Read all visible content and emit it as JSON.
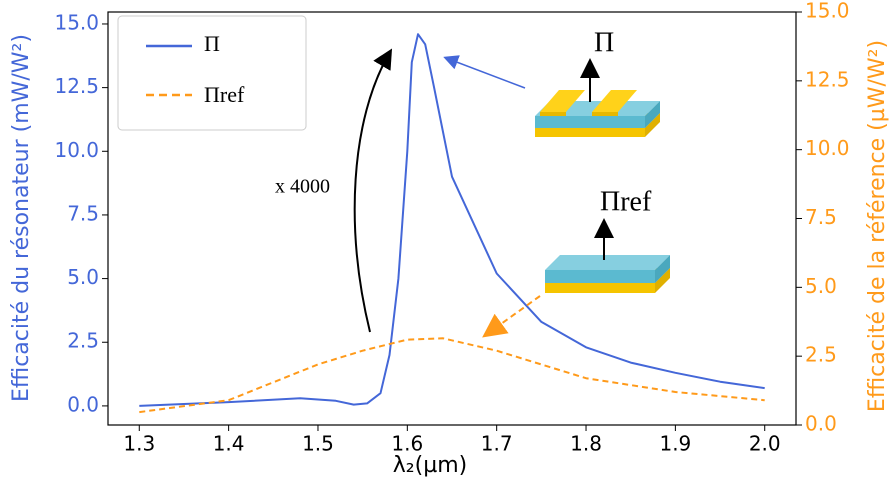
{
  "chart_data": {
    "type": "line",
    "xlabel": "λ₂(µm)",
    "ylabel": "Efficacité du résonateur (mW/W²)",
    "y2label": "Efficacité de la référence (µW/W²)",
    "annotation": "x 4000",
    "inset_labels": [
      "Π",
      "Πref"
    ],
    "xlim": [
      1.265,
      2.035
    ],
    "xticks": [
      1.3,
      1.4,
      1.5,
      1.6,
      1.7,
      1.8,
      1.9,
      {
        "value": 2,
        "label": "2.0"
      }
    ],
    "ylim": [
      -0.75,
      15.47
    ],
    "yticks": [
      {
        "value": 0,
        "label": "0.0"
      },
      2.5,
      {
        "value": 5,
        "label": "5.0"
      },
      7.5,
      {
        "value": 10,
        "label": "10.0"
      },
      12.5,
      {
        "value": 15,
        "label": "15.0"
      }
    ],
    "y2lim": [
      0,
      15
    ],
    "y2ticks": [
      {
        "value": 0,
        "label": "0.0"
      },
      2.5,
      {
        "value": 5,
        "label": "5.0"
      },
      7.5,
      {
        "value": 10,
        "label": "10.0"
      },
      12.5,
      {
        "value": 15,
        "label": "15.0"
      }
    ],
    "legend": "upper left",
    "series": [
      {
        "name": "Π",
        "color": "#4467d8",
        "dash": false,
        "x": [
          1.3,
          1.4,
          1.48,
          1.52,
          1.54,
          1.555,
          1.57,
          1.58,
          1.59,
          1.6,
          1.605,
          1.612,
          1.62,
          1.63,
          1.65,
          1.7,
          1.75,
          1.8,
          1.85,
          1.9,
          1.95,
          2.0
        ],
        "values": [
          0.0,
          0.15,
          0.3,
          0.2,
          0.05,
          0.1,
          0.5,
          2.0,
          5.0,
          10.0,
          13.5,
          14.6,
          14.2,
          12.5,
          9.0,
          5.2,
          3.3,
          2.3,
          1.7,
          1.3,
          0.95,
          0.7
        ]
      },
      {
        "name": "Πref",
        "color": "#ff9a1a",
        "dash": true,
        "axis": "y2",
        "x": [
          1.3,
          1.4,
          1.5,
          1.55,
          1.6,
          1.64,
          1.7,
          1.8,
          1.9,
          2.0
        ],
        "values": [
          0.47,
          0.9,
          2.2,
          2.7,
          3.1,
          3.15,
          2.7,
          1.7,
          1.2,
          0.9
        ]
      }
    ]
  }
}
